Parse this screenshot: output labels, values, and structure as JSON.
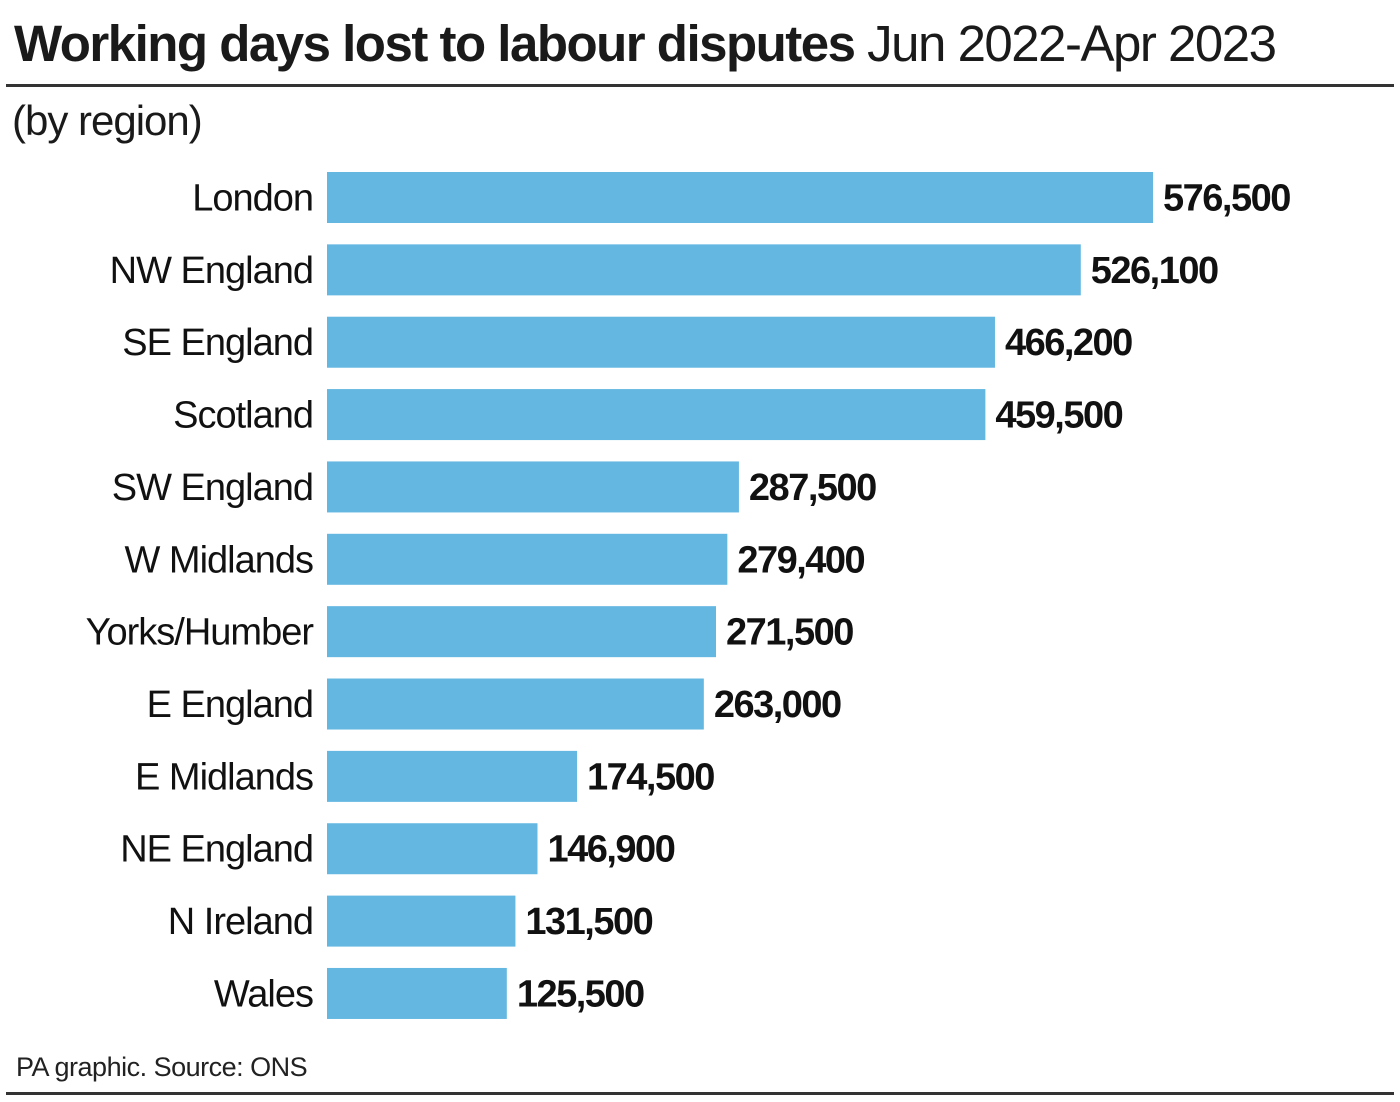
{
  "chart_data": {
    "type": "bar",
    "orientation": "horizontal",
    "title": "Working days lost to labour disputes",
    "title_period": "Jun 2022-Apr 2023",
    "subtitle": "(by region)",
    "categories": [
      "London",
      "NW England",
      "SE England",
      "Scotland",
      "SW England",
      "W Midlands",
      "Yorks/Humber",
      "E England",
      "E Midlands",
      "NE England",
      "N Ireland",
      "Wales"
    ],
    "values": [
      576500,
      526100,
      466200,
      459500,
      287500,
      279400,
      271500,
      263000,
      174500,
      146900,
      131500,
      125500
    ],
    "value_labels": [
      "576,500",
      "526,100",
      "466,200",
      "459,500",
      "287,500",
      "279,400",
      "271,500",
      "263,000",
      "174,500",
      "146,900",
      "131,500",
      "125,500"
    ],
    "xlim": [
      0,
      576500
    ],
    "grid": false,
    "bar_color": "#63B7E1"
  },
  "footer": "PA graphic. Source: ONS"
}
